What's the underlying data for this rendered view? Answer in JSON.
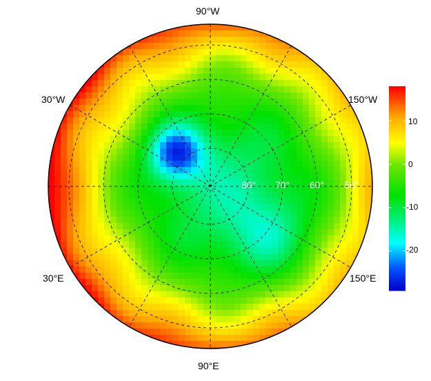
{
  "map": {
    "projection": "north polar stereographic",
    "meridian_labels": {
      "top": "90°W",
      "upper_left": "30°W",
      "upper_right": "150°W",
      "lower_left": "30°E",
      "lower_right": "150°E",
      "bottom": "90°E"
    },
    "latitude_labels": [
      "80°",
      "70°",
      "60°",
      "50°"
    ]
  },
  "colorbar": {
    "colormap": "jet",
    "range": [
      -29,
      18
    ],
    "ticks": [
      "10",
      "0",
      "-10",
      "-20"
    ],
    "tick_values": [
      10,
      0,
      -10,
      -20
    ]
  },
  "colors": {
    "coastline": "#000000",
    "grid": "#000000",
    "min": "#0000c8",
    "max": "#ff0000"
  }
}
